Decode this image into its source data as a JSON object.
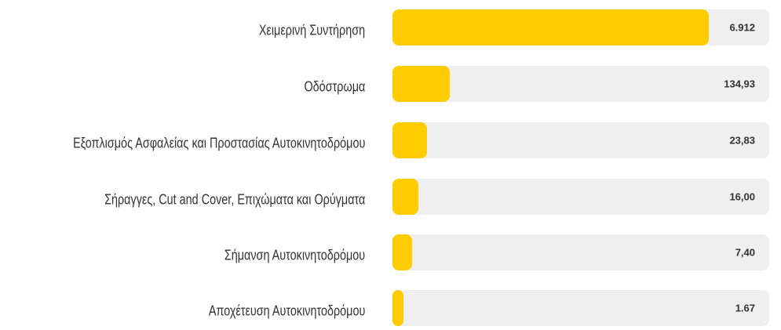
{
  "rows": [
    {
      "label": "Χειμερινή Συντήρηση",
      "value": "6.912"
    },
    {
      "label": "Οδόστρωμα",
      "value": "134,93"
    },
    {
      "label": "Εξοπλισμός Ασφαλείας και Προστασίας Αυτοκινητοδρόμου",
      "value": "23,83"
    },
    {
      "label": "Σήραγγες, Cut and Cover, Επιχώματα και Ορύγματα",
      "value": "16,00"
    },
    {
      "label": "Σήμανση Αυτοκινητοδρόμου",
      "value": "7,40"
    },
    {
      "label": "Αποχέτευση Αυτοκινητοδρόμου",
      "value": "1.67"
    }
  ]
}
